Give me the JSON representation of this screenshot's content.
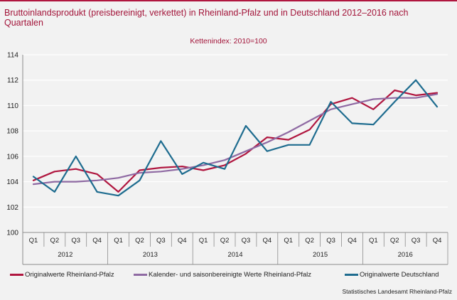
{
  "header": {
    "title": "Bruttoinlandsprodukt (preisbereinigt, verkettet) in Rheinland-Pfalz und in Deutschland 2012–2016 nach Quartalen",
    "subtitle": "Kettenindex: 2010=100"
  },
  "colors": {
    "title": "#a3153a",
    "series_rlp": "#b0163f",
    "series_adjusted": "#8f6aa3",
    "series_de": "#1e6c8f",
    "grid": "#ffffff",
    "background": "#f2f2f2"
  },
  "legend": {
    "items": [
      "Originalwerte Rheinland-Pfalz",
      "Kalender- und saisonbereinigte Werte Rheinland-Pfalz",
      "Originalwerte Deutschland"
    ]
  },
  "source": "Statistisches Landesamt Rheinland-Pfalz",
  "chart_data": {
    "type": "line",
    "categories": [
      "Q1",
      "Q2",
      "Q3",
      "Q4",
      "Q1",
      "Q2",
      "Q3",
      "Q4",
      "Q1",
      "Q2",
      "Q3",
      "Q4",
      "Q1",
      "Q2",
      "Q3",
      "Q4",
      "Q1",
      "Q2",
      "Q3",
      "Q4"
    ],
    "years": [
      "2012",
      "2013",
      "2014",
      "2015",
      "2016"
    ],
    "yticks": [
      "100",
      "102",
      "104",
      "106",
      "108",
      "110",
      "112",
      "114"
    ],
    "ylim": [
      100,
      114
    ],
    "grid": true,
    "legend_position": "bottom",
    "series": [
      {
        "name": "Originalwerte Rheinland-Pfalz",
        "values": [
          104.1,
          104.8,
          105.0,
          104.6,
          103.2,
          104.9,
          105.1,
          105.2,
          104.9,
          105.3,
          106.2,
          107.5,
          107.3,
          108.1,
          110.1,
          110.6,
          109.7,
          111.2,
          110.8,
          111.0
        ]
      },
      {
        "name": "Kalender- und saisonbereinigte Werte Rheinland-Pfalz",
        "values": [
          103.8,
          104.0,
          104.0,
          104.1,
          104.3,
          104.7,
          104.8,
          105.0,
          105.3,
          105.7,
          106.4,
          107.1,
          107.9,
          108.8,
          109.7,
          110.1,
          110.5,
          110.6,
          110.6,
          110.9
        ]
      },
      {
        "name": "Originalwerte Deutschland",
        "values": [
          104.4,
          103.2,
          106.0,
          103.2,
          102.9,
          104.1,
          107.2,
          104.6,
          105.5,
          105.0,
          108.4,
          106.4,
          106.9,
          106.9,
          110.3,
          108.6,
          108.5,
          110.3,
          112.0,
          109.9
        ]
      }
    ]
  }
}
